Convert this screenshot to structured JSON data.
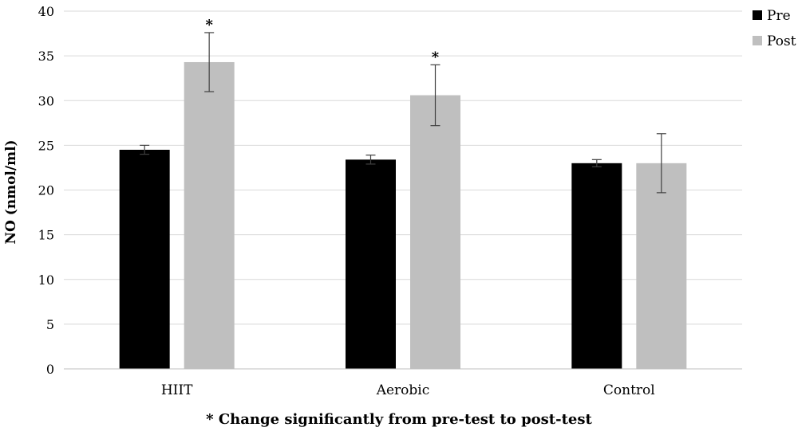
{
  "chart_data": {
    "type": "bar",
    "ylabel": "NO (nmol/ml)",
    "xlabel": "",
    "ylim": [
      0,
      40
    ],
    "yticks": [
      0,
      5,
      10,
      15,
      20,
      25,
      30,
      35,
      40
    ],
    "grid": true,
    "legend_position": "top-right",
    "categories": [
      "HIIT",
      "Aerobic",
      "Control"
    ],
    "series": [
      {
        "name": "Pre",
        "color": "#000000",
        "values": [
          24.5,
          23.4,
          23.0
        ],
        "errors": [
          0.5,
          0.5,
          0.4
        ]
      },
      {
        "name": "Post",
        "color": "#bfbfbf",
        "values": [
          34.3,
          30.6,
          23.0
        ],
        "errors": [
          3.3,
          3.4,
          3.3
        ]
      }
    ],
    "annotations": [
      {
        "category": "HIIT",
        "series": "Post",
        "text": "*"
      },
      {
        "category": "Aerobic",
        "series": "Post",
        "text": "*"
      }
    ],
    "footnote": "* Change significantly from pre-test to post-test"
  }
}
